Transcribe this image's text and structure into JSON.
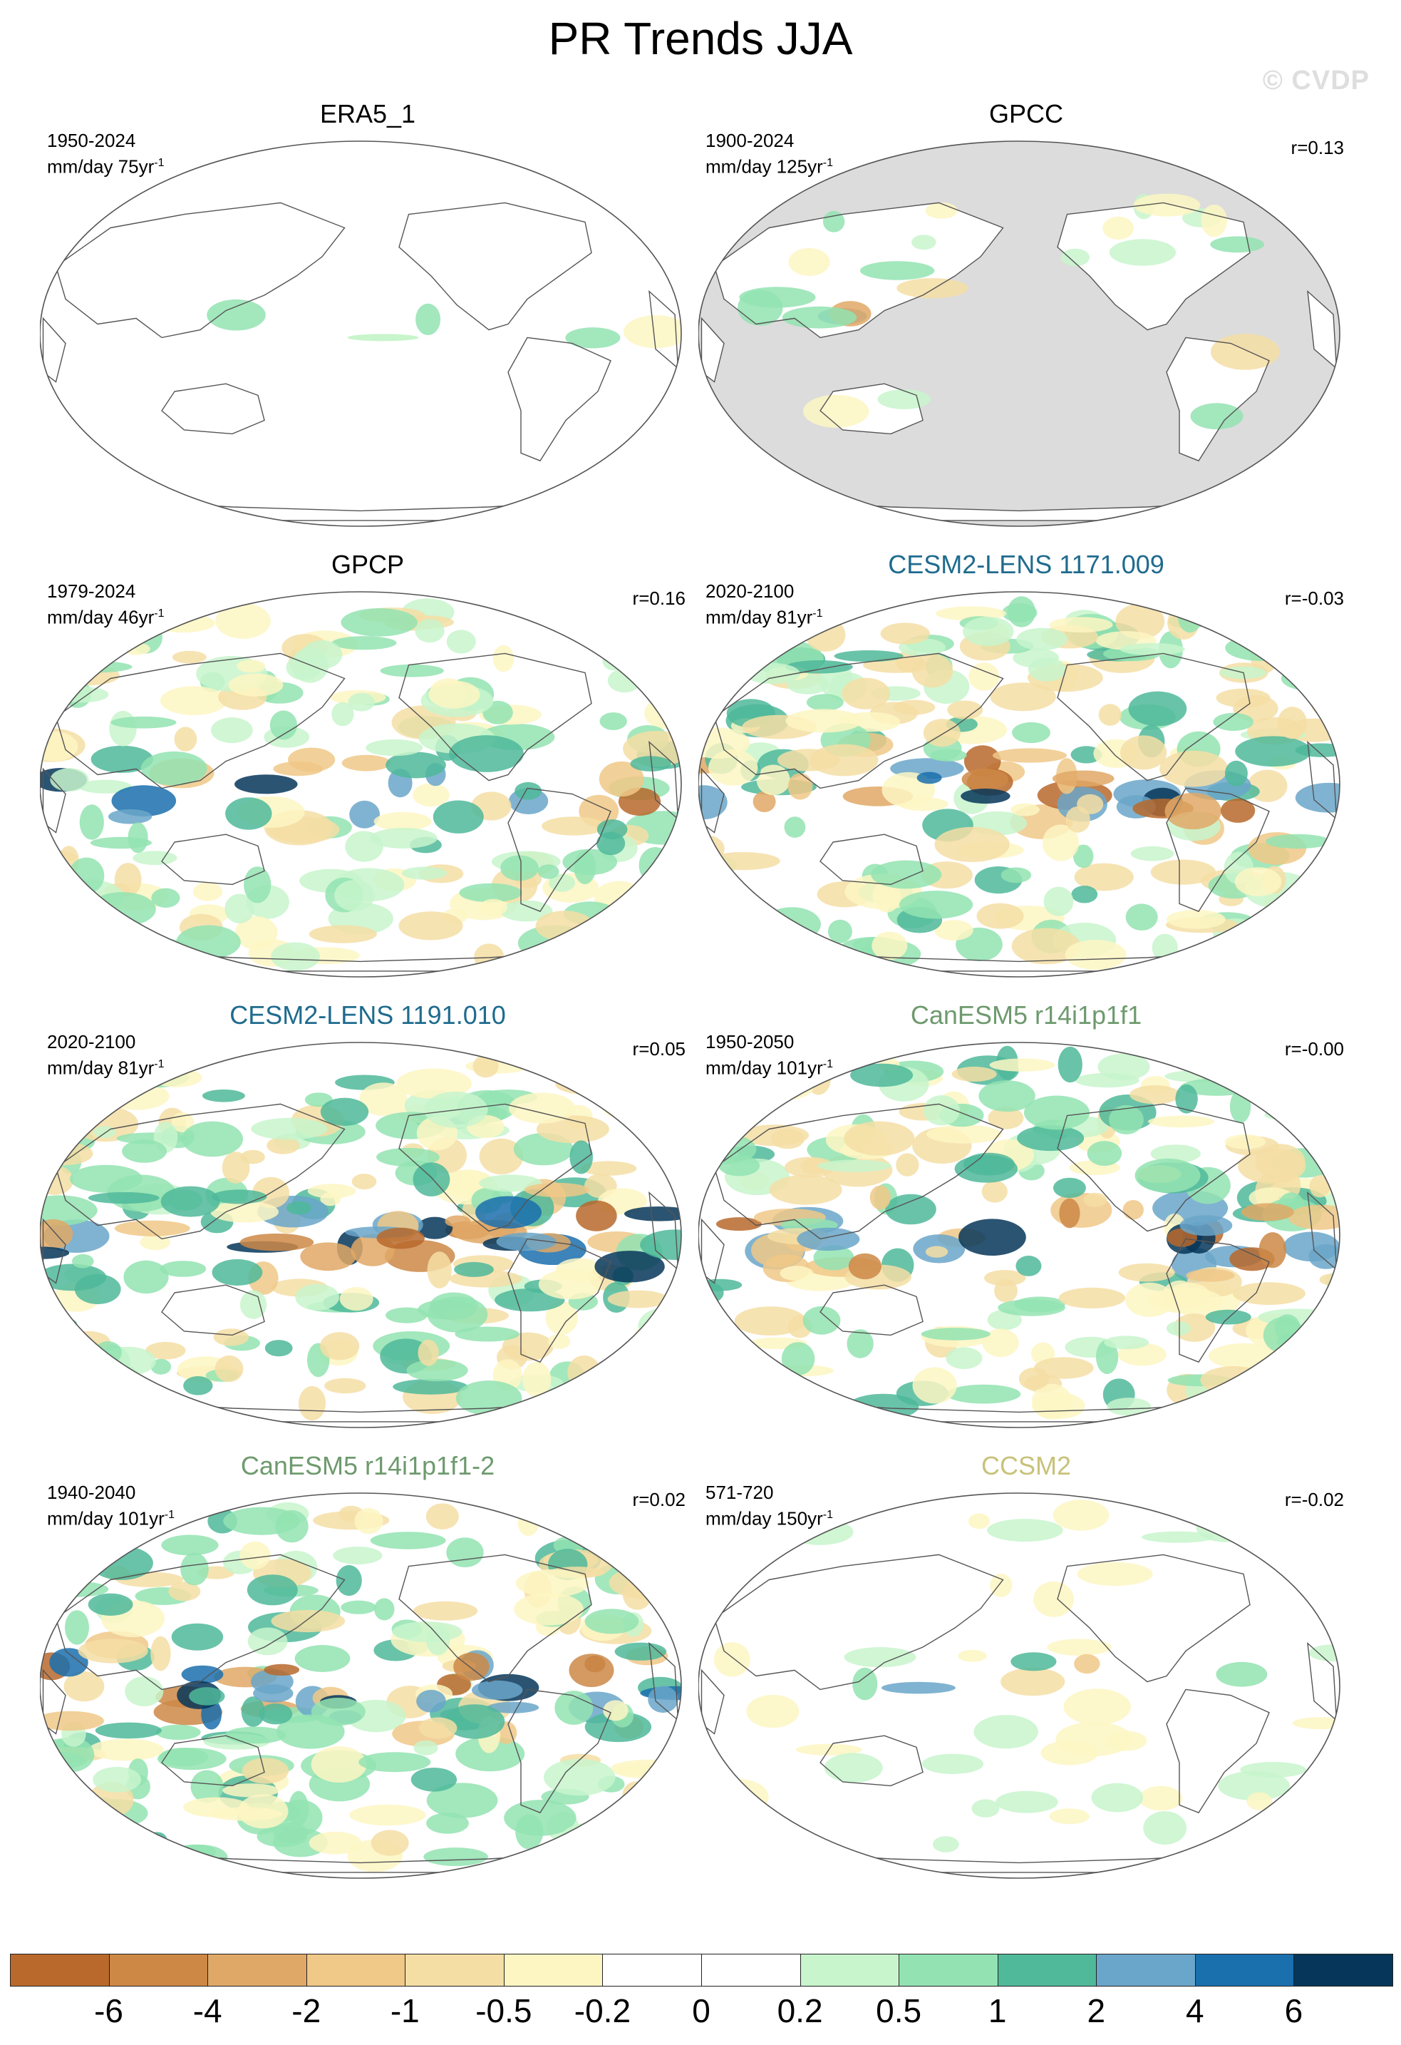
{
  "title": "PR Trends JJA",
  "watermark": "© CVDP",
  "panels": [
    {
      "id": "era5",
      "title": "ERA5_1",
      "title_color": "#000000",
      "period": "1950-2024",
      "units_prefix": "mm/day 75yr",
      "units_exp": "-1",
      "corr": "",
      "land_only": false,
      "intensity": 0.08
    },
    {
      "id": "gpcc",
      "title": "GPCC",
      "title_color": "#000000",
      "period": "1900-2024",
      "units_prefix": "mm/day 125yr",
      "units_exp": "-1",
      "corr": "r=0.13",
      "land_only": true,
      "intensity": 0.5
    },
    {
      "id": "gpcp",
      "title": "GPCP",
      "title_color": "#000000",
      "period": "1979-2024",
      "units_prefix": "mm/day 46yr",
      "units_exp": "-1",
      "corr": "r=0.16",
      "land_only": false,
      "intensity": 0.75
    },
    {
      "id": "cesm-1171",
      "title": "CESM2-LENS 1171.009",
      "title_color": "#1f6b8e",
      "period": "2020-2100",
      "units_prefix": "mm/day 81yr",
      "units_exp": "-1",
      "corr": "r=-0.03",
      "land_only": false,
      "intensity": 1.0
    },
    {
      "id": "cesm-1191",
      "title": "CESM2-LENS 1191.010",
      "title_color": "#1f6b8e",
      "period": "2020-2100",
      "units_prefix": "mm/day 81yr",
      "units_exp": "-1",
      "corr": "r=0.05",
      "land_only": false,
      "intensity": 1.0
    },
    {
      "id": "canesm5",
      "title": "CanESM5 r14i1p1f1",
      "title_color": "#6e9a6e",
      "period": "1950-2050",
      "units_prefix": "mm/day 101yr",
      "units_exp": "-1",
      "corr": "r=-0.00",
      "land_only": false,
      "intensity": 0.95
    },
    {
      "id": "canesm5-2",
      "title": "CanESM5 r14i1p1f1-2",
      "title_color": "#6e9a6e",
      "period": "1940-2040",
      "units_prefix": "mm/day 101yr",
      "units_exp": "-1",
      "corr": "r=0.02",
      "land_only": false,
      "intensity": 0.95
    },
    {
      "id": "ccsm2",
      "title": "CCSM2",
      "title_color": "#c8c27a",
      "period": "571-720",
      "units_prefix": "mm/day 150yr",
      "units_exp": "-1",
      "corr": "r=-0.02",
      "land_only": false,
      "intensity": 0.3
    }
  ],
  "colorbar": {
    "colors": [
      "#b8692b",
      "#cd8846",
      "#e0a866",
      "#f0c887",
      "#f5dea4",
      "#fdf6c3",
      "#ffffff",
      "#ffffff",
      "#c8f5cc",
      "#93e3b2",
      "#4fb99a",
      "#6aa6c9",
      "#1a6fad",
      "#063659"
    ],
    "labels": [
      "-6",
      "-4",
      "-2",
      "-1",
      "-0.5",
      "-0.2",
      "0",
      "0.2",
      "0.5",
      "1",
      "2",
      "4",
      "6"
    ]
  },
  "land_mask_color": "#dcdcdc"
}
